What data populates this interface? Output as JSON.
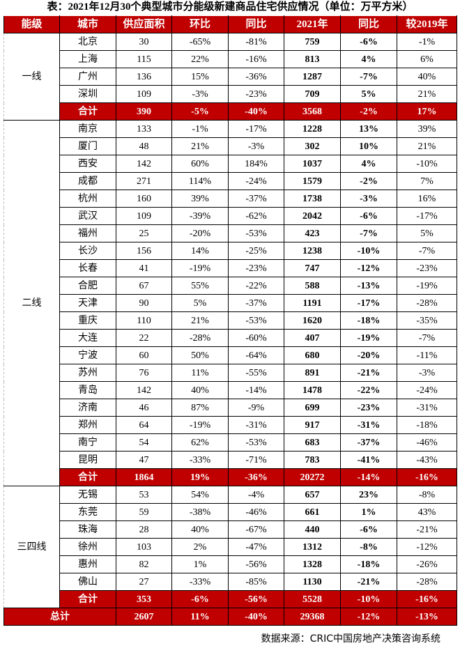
{
  "title": "表：2021年12月30个典型城市分能级新建商品住宅供应情况（单位：万平方米）",
  "headers": [
    "能级",
    "城市",
    "供应面积",
    "环比",
    "同比",
    "2021年",
    "同比",
    "较2019年"
  ],
  "tiers": [
    {
      "name": "一线",
      "rows": [
        [
          "北京",
          "30",
          "-65%",
          "-81%",
          "759",
          "-6%",
          "-1%"
        ],
        [
          "上海",
          "115",
          "22%",
          "-16%",
          "813",
          "4%",
          "6%"
        ],
        [
          "广州",
          "136",
          "15%",
          "-36%",
          "1287",
          "-7%",
          "40%"
        ],
        [
          "深圳",
          "109",
          "-3%",
          "-23%",
          "709",
          "5%",
          "21%"
        ]
      ],
      "subtotal": [
        "合计",
        "390",
        "-5%",
        "-40%",
        "3568",
        "-2%",
        "17%"
      ]
    },
    {
      "name": "二线",
      "rows": [
        [
          "南京",
          "133",
          "-1%",
          "-17%",
          "1228",
          "13%",
          "39%"
        ],
        [
          "厦门",
          "48",
          "21%",
          "-3%",
          "302",
          "10%",
          "21%"
        ],
        [
          "西安",
          "142",
          "60%",
          "184%",
          "1037",
          "4%",
          "-10%"
        ],
        [
          "成都",
          "271",
          "114%",
          "-24%",
          "1579",
          "-2%",
          "7%"
        ],
        [
          "杭州",
          "160",
          "39%",
          "-37%",
          "1738",
          "-3%",
          "16%"
        ],
        [
          "武汉",
          "109",
          "-39%",
          "-62%",
          "2042",
          "-6%",
          "-17%"
        ],
        [
          "福州",
          "25",
          "-20%",
          "-53%",
          "423",
          "-7%",
          "5%"
        ],
        [
          "长沙",
          "156",
          "14%",
          "-25%",
          "1238",
          "-10%",
          "-7%"
        ],
        [
          "长春",
          "41",
          "-19%",
          "-23%",
          "747",
          "-12%",
          "-23%"
        ],
        [
          "合肥",
          "67",
          "55%",
          "-22%",
          "588",
          "-13%",
          "-19%"
        ],
        [
          "天津",
          "90",
          "5%",
          "-37%",
          "1191",
          "-17%",
          "-28%"
        ],
        [
          "重庆",
          "110",
          "21%",
          "-53%",
          "1620",
          "-18%",
          "-35%"
        ],
        [
          "大连",
          "22",
          "-28%",
          "-60%",
          "407",
          "-19%",
          "-7%"
        ],
        [
          "宁波",
          "60",
          "50%",
          "-64%",
          "680",
          "-20%",
          "-11%"
        ],
        [
          "苏州",
          "76",
          "11%",
          "-55%",
          "891",
          "-21%",
          "-3%"
        ],
        [
          "青岛",
          "142",
          "40%",
          "-14%",
          "1478",
          "-22%",
          "-24%"
        ],
        [
          "济南",
          "46",
          "87%",
          "-9%",
          "699",
          "-23%",
          "-31%"
        ],
        [
          "郑州",
          "64",
          "-19%",
          "-31%",
          "917",
          "-31%",
          "-18%"
        ],
        [
          "南宁",
          "54",
          "62%",
          "-53%",
          "683",
          "-37%",
          "-46%"
        ],
        [
          "昆明",
          "47",
          "-33%",
          "-71%",
          "783",
          "-41%",
          "-43%"
        ]
      ],
      "subtotal": [
        "合计",
        "1864",
        "19%",
        "-36%",
        "20272",
        "-14%",
        "-16%"
      ]
    },
    {
      "name": "三四线",
      "rows": [
        [
          "无锡",
          "53",
          "54%",
          "-4%",
          "657",
          "23%",
          "-8%"
        ],
        [
          "东莞",
          "59",
          "-38%",
          "-46%",
          "661",
          "1%",
          "43%"
        ],
        [
          "珠海",
          "28",
          "40%",
          "-67%",
          "440",
          "-6%",
          "-21%"
        ],
        [
          "徐州",
          "103",
          "2%",
          "-47%",
          "1312",
          "-8%",
          "-12%"
        ],
        [
          "惠州",
          "82",
          "1%",
          "-56%",
          "1328",
          "-18%",
          "-26%"
        ],
        [
          "佛山",
          "27",
          "-33%",
          "-85%",
          "1130",
          "-21%",
          "-28%"
        ]
      ],
      "subtotal": [
        "合计",
        "353",
        "-6%",
        "-56%",
        "5528",
        "-10%",
        "-16%"
      ]
    }
  ],
  "total": [
    "总计",
    "2607",
    "11%",
    "-40%",
    "29368",
    "-12%",
    "-13%"
  ],
  "source": "数据来源：CRIC中国房地产决策咨询系统",
  "colors": {
    "header_bg": "#c00000",
    "header_text": "#ffffff"
  }
}
